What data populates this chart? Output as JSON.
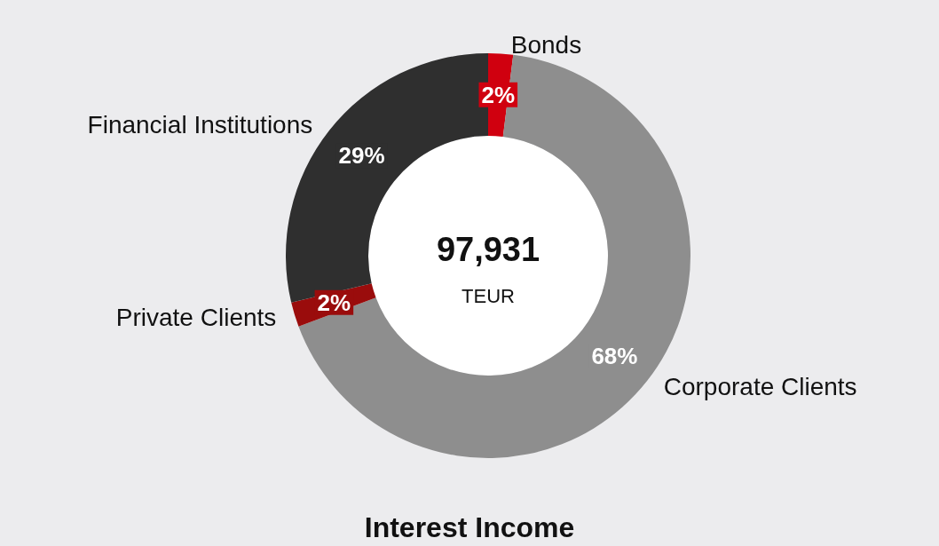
{
  "chart_data": {
    "type": "donut",
    "title": "Interest Income",
    "categories": [
      "Bonds",
      "Corporate Clients",
      "Private Clients",
      "Financial Institutions"
    ],
    "values": [
      2,
      68,
      2,
      29
    ],
    "value_labels": [
      "2%",
      "68%",
      "2%",
      "29%"
    ],
    "colors": [
      "#d0000f",
      "#8e8e8e",
      "#9a0c0c",
      "#2f2f2f"
    ],
    "annotations": [
      "97,931",
      "TEUR"
    ]
  }
}
